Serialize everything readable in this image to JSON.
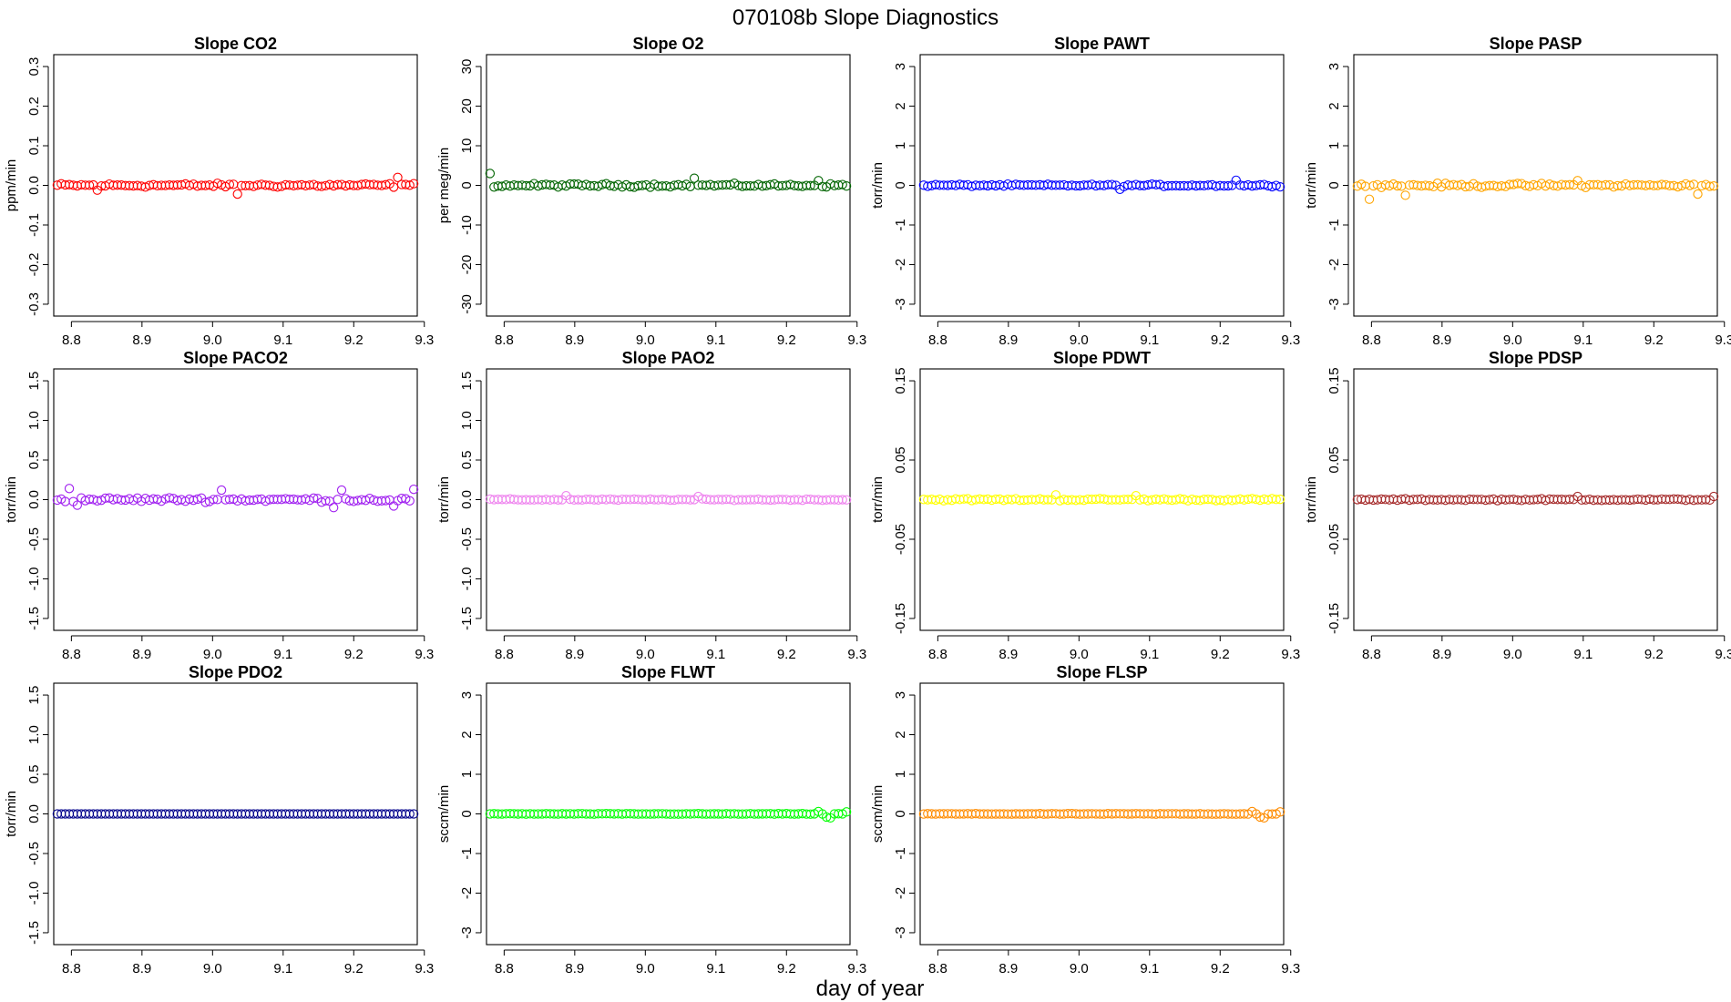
{
  "figure": {
    "title": "070108b   Slope Diagnostics",
    "xlabel": "day of year"
  },
  "chart_data": [
    {
      "type": "scatter",
      "title": "Slope CO2",
      "ylabel": "ppm/min",
      "color": "#ff0000",
      "xlim": [
        8.775,
        9.29
      ],
      "ylim": [
        -0.33,
        0.33
      ],
      "xticks": [
        "8.8",
        "8.9",
        "9.0",
        "9.1",
        "9.2",
        "9.3"
      ],
      "yticks": [
        "-0.3",
        "-0.2",
        "-0.1",
        "0.0",
        "0.1",
        "0.2",
        "0.3"
      ],
      "x_range": [
        8.78,
        9.285
      ],
      "n_points": 90,
      "baseline": 0.0,
      "y_noise": 0.007,
      "outliers": [
        [
          9.035,
          -0.022
        ],
        [
          9.26,
          0.018
        ],
        [
          9.265,
          0.02
        ],
        [
          8.835,
          -0.012
        ]
      ]
    },
    {
      "type": "scatter",
      "title": "Slope O2",
      "ylabel": "per meg/min",
      "color": "#006400",
      "xlim": [
        8.775,
        9.29
      ],
      "ylim": [
        -33,
        33
      ],
      "xticks": [
        "8.8",
        "8.9",
        "9.0",
        "9.1",
        "9.2",
        "9.3"
      ],
      "yticks": [
        "-30",
        "-20",
        "-10",
        "0",
        "10",
        "20",
        "30"
      ],
      "x_range": [
        8.78,
        9.285
      ],
      "n_points": 90,
      "baseline": 0.0,
      "y_noise": 0.6,
      "outliers": [
        [
          8.782,
          3.0
        ],
        [
          9.07,
          1.8
        ],
        [
          9.245,
          1.2
        ]
      ]
    },
    {
      "type": "scatter",
      "title": "Slope PAWT",
      "ylabel": "torr/min",
      "color": "#0000ff",
      "xlim": [
        8.775,
        9.29
      ],
      "ylim": [
        -3.3,
        3.3
      ],
      "xticks": [
        "8.8",
        "8.9",
        "9.0",
        "9.1",
        "9.2",
        "9.3"
      ],
      "yticks": [
        "-3",
        "-2",
        "-1",
        "0",
        "1",
        "2",
        "3"
      ],
      "x_range": [
        8.78,
        9.285
      ],
      "n_points": 90,
      "baseline": 0.0,
      "y_noise": 0.04,
      "outliers": [
        [
          9.225,
          0.13
        ],
        [
          9.06,
          -0.1
        ]
      ]
    },
    {
      "type": "scatter",
      "title": "Slope PASP",
      "ylabel": "torr/min",
      "color": "#ffa500",
      "xlim": [
        8.775,
        9.29
      ],
      "ylim": [
        -3.3,
        3.3
      ],
      "xticks": [
        "8.8",
        "8.9",
        "9.0",
        "9.1",
        "9.2",
        "9.3"
      ],
      "yticks": [
        "-3",
        "-2",
        "-1",
        "0",
        "1",
        "2",
        "3"
      ],
      "x_range": [
        8.78,
        9.285
      ],
      "n_points": 90,
      "baseline": 0.0,
      "y_noise": 0.07,
      "outliers": [
        [
          8.795,
          -0.35
        ],
        [
          8.85,
          -0.25
        ],
        [
          9.09,
          0.12
        ],
        [
          9.265,
          -0.22
        ]
      ]
    },
    {
      "type": "scatter",
      "title": "Slope PACO2",
      "ylabel": "torr/min",
      "color": "#a020f0",
      "xlim": [
        8.775,
        9.29
      ],
      "ylim": [
        -1.65,
        1.65
      ],
      "xticks": [
        "8.8",
        "8.9",
        "9.0",
        "9.1",
        "9.2",
        "9.3"
      ],
      "yticks": [
        "-1.5",
        "-1.0",
        "-0.5",
        "0.0",
        "0.5",
        "1.0",
        "1.5"
      ],
      "x_range": [
        8.78,
        9.285
      ],
      "n_points": 90,
      "baseline": 0.0,
      "y_noise": 0.04,
      "outliers": [
        [
          8.795,
          0.14
        ],
        [
          9.285,
          0.13
        ],
        [
          9.185,
          0.12
        ],
        [
          9.015,
          0.12
        ],
        [
          8.81,
          -0.07
        ],
        [
          9.17,
          -0.1
        ],
        [
          9.255,
          -0.08
        ]
      ]
    },
    {
      "type": "scatter",
      "title": "Slope PAO2",
      "ylabel": "torr/min",
      "color": "#ee82ee",
      "xlim": [
        8.775,
        9.29
      ],
      "ylim": [
        -1.65,
        1.65
      ],
      "xticks": [
        "8.8",
        "8.9",
        "9.0",
        "9.1",
        "9.2",
        "9.3"
      ],
      "yticks": [
        "-1.5",
        "-1.0",
        "-0.5",
        "0.0",
        "0.5",
        "1.0",
        "1.5"
      ],
      "x_range": [
        8.78,
        9.285
      ],
      "n_points": 90,
      "baseline": 0.0,
      "y_noise": 0.012,
      "outliers": [
        [
          8.885,
          0.05
        ],
        [
          9.075,
          0.04
        ]
      ]
    },
    {
      "type": "scatter",
      "title": "Slope PDWT",
      "ylabel": "torr/min",
      "color": "#ffff00",
      "xlim": [
        8.775,
        9.29
      ],
      "ylim": [
        -0.165,
        0.165
      ],
      "xticks": [
        "8.8",
        "8.9",
        "9.0",
        "9.1",
        "9.2",
        "9.3"
      ],
      "yticks": [
        "-0.15",
        "-0.05",
        "0.05",
        "0.15"
      ],
      "x_range": [
        8.78,
        9.285
      ],
      "n_points": 90,
      "baseline": 0.0,
      "y_noise": 0.002,
      "outliers": [
        [
          8.965,
          0.006
        ],
        [
          9.08,
          0.005
        ]
      ]
    },
    {
      "type": "scatter",
      "title": "Slope PDSP",
      "ylabel": "torr/min",
      "color": "#a52a2a",
      "xlim": [
        8.775,
        9.29
      ],
      "ylim": [
        -0.165,
        0.165
      ],
      "xticks": [
        "8.8",
        "8.9",
        "9.0",
        "9.1",
        "9.2",
        "9.3"
      ],
      "yticks": [
        "-0.15",
        "-0.05",
        "0.05",
        "0.15"
      ],
      "x_range": [
        8.78,
        9.285
      ],
      "n_points": 90,
      "baseline": 0.0,
      "y_noise": 0.0015,
      "outliers": [
        [
          9.285,
          0.004
        ],
        [
          9.09,
          0.004
        ]
      ]
    },
    {
      "type": "scatter",
      "title": "Slope PDO2",
      "ylabel": "torr/min",
      "color": "#00008b",
      "xlim": [
        8.775,
        9.29
      ],
      "ylim": [
        -1.65,
        1.65
      ],
      "xticks": [
        "8.8",
        "8.9",
        "9.0",
        "9.1",
        "9.2",
        "9.3"
      ],
      "yticks": [
        "-1.5",
        "-1.0",
        "-0.5",
        "0.0",
        "0.5",
        "1.0",
        "1.5"
      ],
      "x_range": [
        8.78,
        9.285
      ],
      "n_points": 90,
      "baseline": 0.0,
      "y_noise": 0.0,
      "outliers": []
    },
    {
      "type": "scatter",
      "title": "Slope FLWT",
      "ylabel": "sccm/min",
      "color": "#00ff00",
      "xlim": [
        8.775,
        9.29
      ],
      "ylim": [
        -3.3,
        3.3
      ],
      "xticks": [
        "8.8",
        "8.9",
        "9.0",
        "9.1",
        "9.2",
        "9.3"
      ],
      "yticks": [
        "-3",
        "-2",
        "-1",
        "0",
        "1",
        "2",
        "3"
      ],
      "x_range": [
        8.78,
        9.285
      ],
      "n_points": 90,
      "baseline": 0.0,
      "y_noise": 0.01,
      "outliers": [
        [
          9.255,
          -0.08
        ],
        [
          9.265,
          -0.1
        ],
        [
          9.285,
          0.05
        ],
        [
          9.245,
          0.06
        ]
      ]
    },
    {
      "type": "scatter",
      "title": "Slope FLSP",
      "ylabel": "sccm/min",
      "color": "#ff8c00",
      "xlim": [
        8.775,
        9.29
      ],
      "ylim": [
        -3.3,
        3.3
      ],
      "xticks": [
        "8.8",
        "8.9",
        "9.0",
        "9.1",
        "9.2",
        "9.3"
      ],
      "yticks": [
        "-3",
        "-2",
        "-1",
        "0",
        "1",
        "2",
        "3"
      ],
      "x_range": [
        8.78,
        9.285
      ],
      "n_points": 90,
      "baseline": 0.0,
      "y_noise": 0.01,
      "outliers": [
        [
          9.255,
          -0.08
        ],
        [
          9.265,
          -0.1
        ],
        [
          9.285,
          0.05
        ],
        [
          9.245,
          0.06
        ]
      ]
    }
  ]
}
